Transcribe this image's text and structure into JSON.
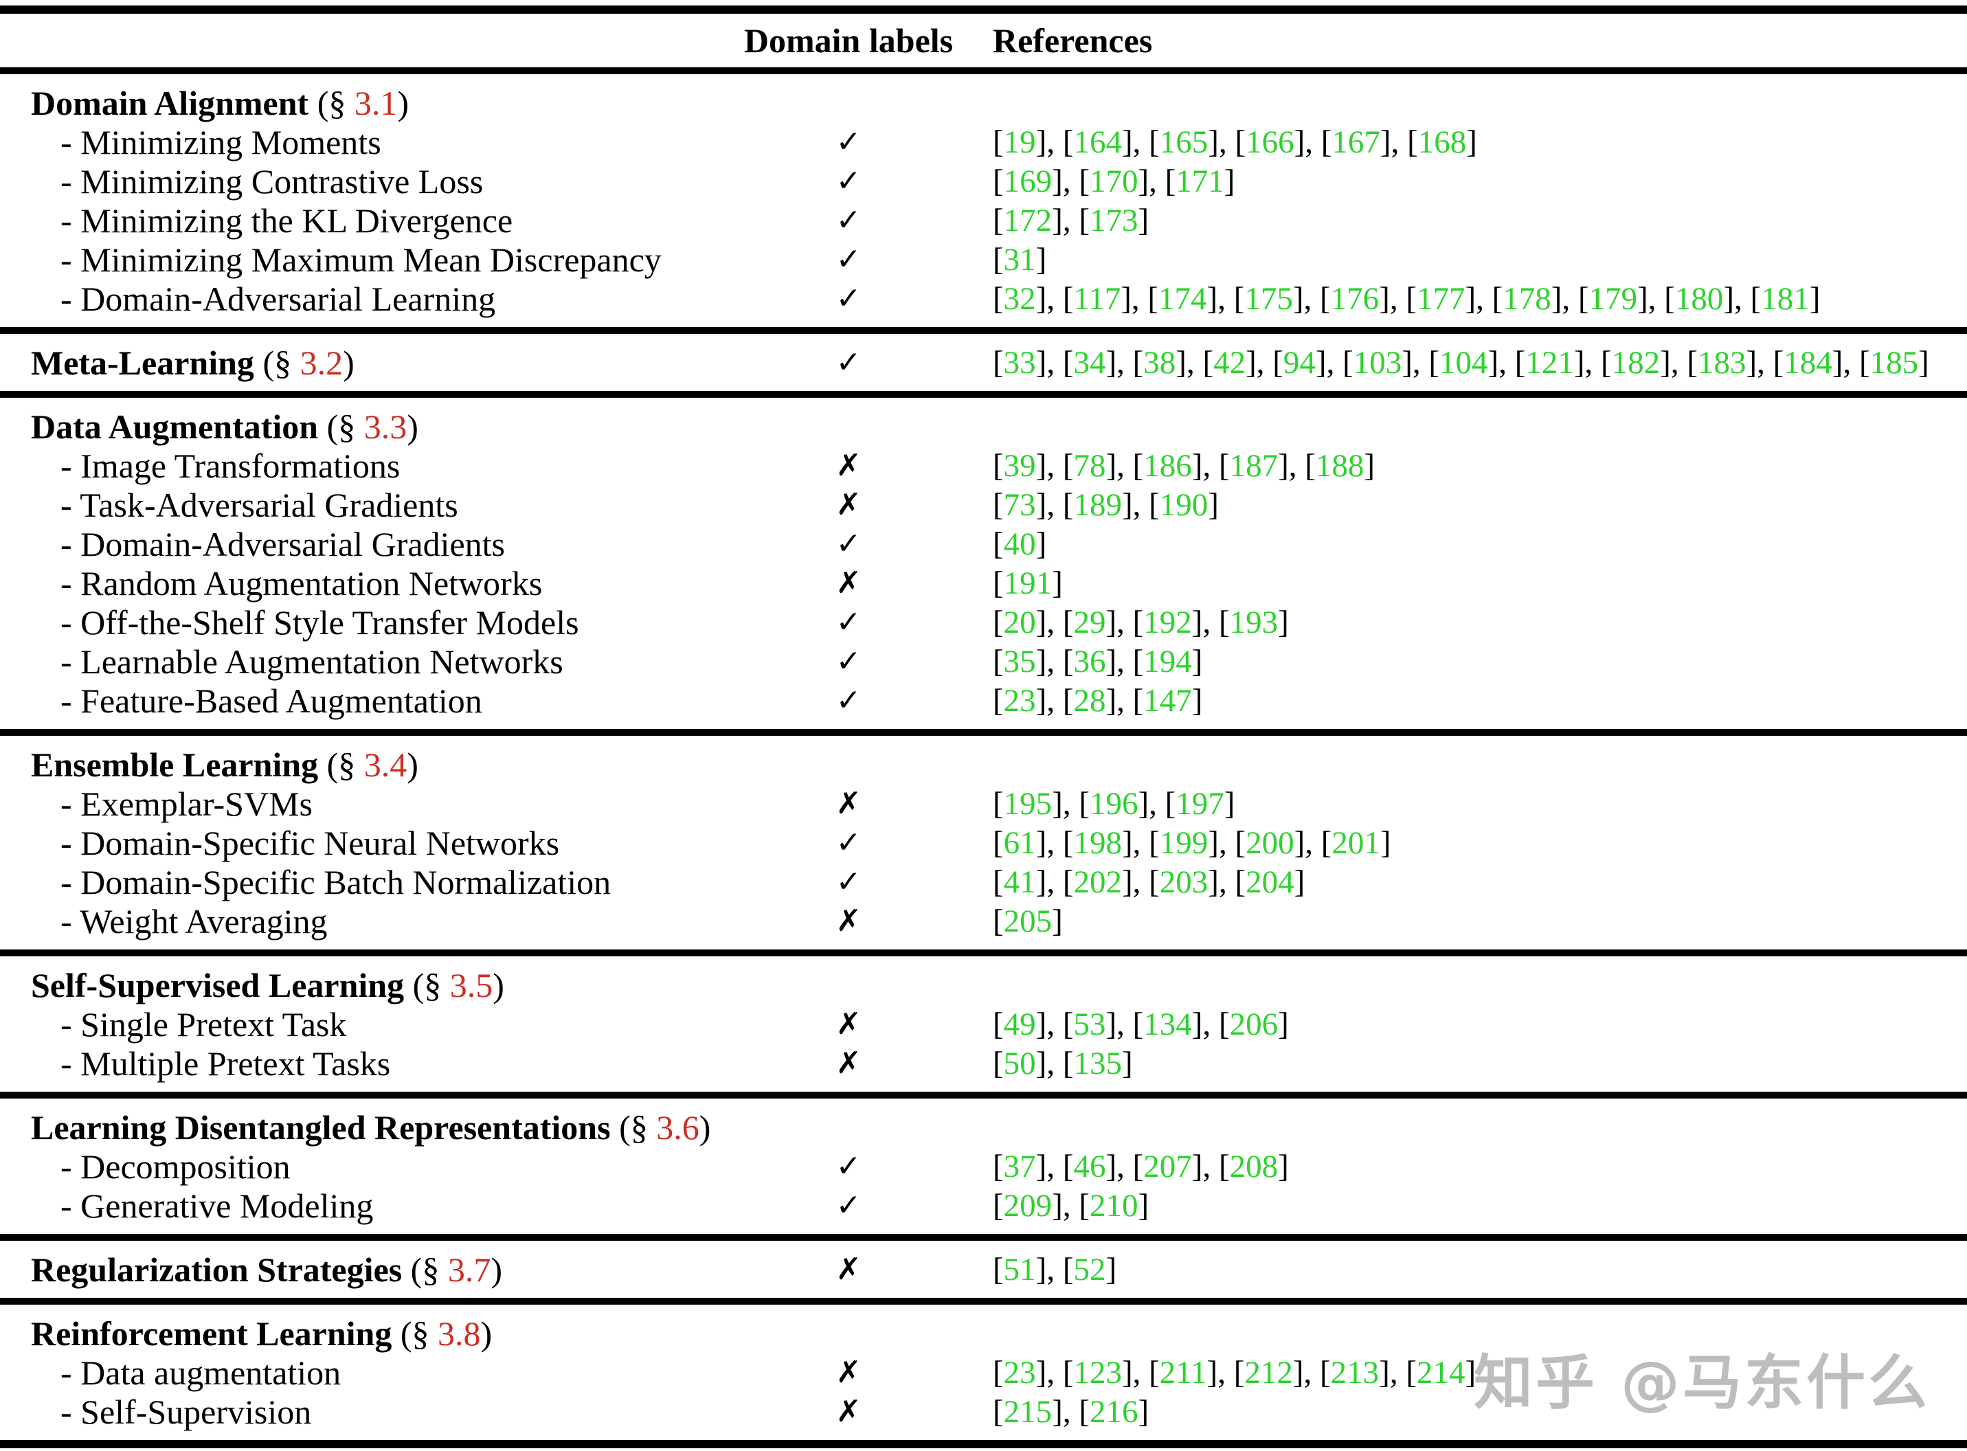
{
  "header": {
    "domain_labels": "Domain labels",
    "references": "References"
  },
  "format": {
    "dash_prefix": "- ",
    "section_prefix": " (§ ",
    "section_suffix": ")",
    "ref_open": "[",
    "ref_close": "]",
    "ref_separator": ", "
  },
  "marks": {
    "check": "✓",
    "cross": "✗"
  },
  "colors": {
    "ref_green": "#2dd22d",
    "section_red": "#cd2d23",
    "text_black": "#000000",
    "watermark_gray": "#bdbdbd"
  },
  "watermark": {
    "text": "知乎 @马东什么"
  },
  "sections": [
    {
      "title": "Domain Alignment",
      "number": "3.1",
      "mark": "",
      "refs": [],
      "rows": [
        {
          "label": "Minimizing Moments",
          "mark": "check",
          "refs": [
            "19",
            "164",
            "165",
            "166",
            "167",
            "168"
          ]
        },
        {
          "label": "Minimizing Contrastive Loss",
          "mark": "check",
          "refs": [
            "169",
            "170",
            "171"
          ]
        },
        {
          "label": "Minimizing the KL Divergence",
          "mark": "check",
          "refs": [
            "172",
            "173"
          ]
        },
        {
          "label": "Minimizing Maximum Mean Discrepancy",
          "mark": "check",
          "refs": [
            "31"
          ]
        },
        {
          "label": "Domain-Adversarial Learning",
          "mark": "check",
          "refs": [
            "32",
            "117",
            "174",
            "175",
            "176",
            "177",
            "178",
            "179",
            "180",
            "181"
          ]
        }
      ]
    },
    {
      "title": "Meta-Learning",
      "number": "3.2",
      "mark": "check",
      "refs": [
        "33",
        "34",
        "38",
        "42",
        "94",
        "103",
        "104",
        "121",
        "182",
        "183",
        "184",
        "185"
      ],
      "rows": []
    },
    {
      "title": "Data Augmentation",
      "number": "3.3",
      "mark": "",
      "refs": [],
      "rows": [
        {
          "label": "Image Transformations",
          "mark": "cross",
          "refs": [
            "39",
            "78",
            "186",
            "187",
            "188"
          ]
        },
        {
          "label": "Task-Adversarial Gradients",
          "mark": "cross",
          "refs": [
            "73",
            "189",
            "190"
          ]
        },
        {
          "label": "Domain-Adversarial Gradients",
          "mark": "check",
          "refs": [
            "40"
          ]
        },
        {
          "label": "Random Augmentation Networks",
          "mark": "cross",
          "refs": [
            "191"
          ]
        },
        {
          "label": "Off-the-Shelf Style Transfer Models",
          "mark": "check",
          "refs": [
            "20",
            "29",
            "192",
            "193"
          ]
        },
        {
          "label": "Learnable Augmentation Networks",
          "mark": "check",
          "refs": [
            "35",
            "36",
            "194"
          ]
        },
        {
          "label": "Feature-Based Augmentation",
          "mark": "check",
          "refs": [
            "23",
            "28",
            "147"
          ]
        }
      ]
    },
    {
      "title": "Ensemble Learning",
      "number": "3.4",
      "mark": "",
      "refs": [],
      "rows": [
        {
          "label": "Exemplar-SVMs",
          "mark": "cross",
          "refs": [
            "195",
            "196",
            "197"
          ]
        },
        {
          "label": "Domain-Specific Neural Networks",
          "mark": "check",
          "refs": [
            "61",
            "198",
            "199",
            "200",
            "201"
          ]
        },
        {
          "label": "Domain-Specific Batch Normalization",
          "mark": "check",
          "refs": [
            "41",
            "202",
            "203",
            "204"
          ]
        },
        {
          "label": "Weight Averaging",
          "mark": "cross",
          "refs": [
            "205"
          ]
        }
      ]
    },
    {
      "title": "Self-Supervised Learning",
      "number": "3.5",
      "mark": "",
      "refs": [],
      "rows": [
        {
          "label": "Single Pretext Task",
          "mark": "cross",
          "refs": [
            "49",
            "53",
            "134",
            "206"
          ]
        },
        {
          "label": "Multiple Pretext Tasks",
          "mark": "cross",
          "refs": [
            "50",
            "135"
          ]
        }
      ]
    },
    {
      "title": "Learning Disentangled Representations",
      "number": "3.6",
      "mark": "",
      "refs": [],
      "rows": [
        {
          "label": "Decomposition",
          "mark": "check",
          "refs": [
            "37",
            "46",
            "207",
            "208"
          ]
        },
        {
          "label": "Generative Modeling",
          "mark": "check",
          "refs": [
            "209",
            "210"
          ]
        }
      ]
    },
    {
      "title": "Regularization Strategies",
      "number": "3.7",
      "mark": "cross",
      "refs": [
        "51",
        "52"
      ],
      "rows": []
    },
    {
      "title": "Reinforcement Learning",
      "number": "3.8",
      "mark": "",
      "refs": [],
      "rows": [
        {
          "label": "Data augmentation",
          "mark": "cross",
          "refs": [
            "23",
            "123",
            "211",
            "212",
            "213",
            "214"
          ]
        },
        {
          "label": "Self-Supervision",
          "mark": "cross",
          "refs": [
            "215",
            "216"
          ]
        }
      ]
    }
  ]
}
